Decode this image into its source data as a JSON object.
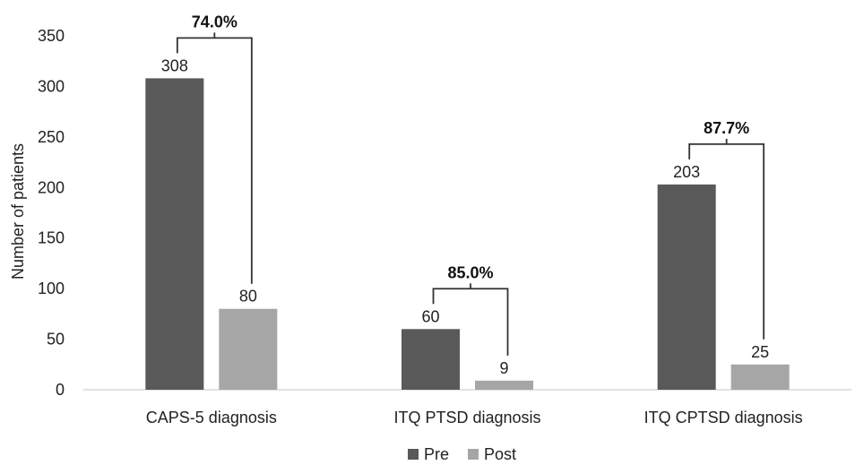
{
  "chart_data": {
    "type": "bar",
    "categories": [
      "CAPS-5 diagnosis",
      "ITQ PTSD diagnosis",
      "ITQ CPTSD diagnosis"
    ],
    "series": [
      {
        "name": "Pre",
        "values": [
          308,
          60,
          203
        ],
        "color": "#595959"
      },
      {
        "name": "Post",
        "values": [
          80,
          9,
          25
        ],
        "color": "#a6a6a6"
      }
    ],
    "annotations": [
      "74.0%",
      "85.0%",
      "87.7%"
    ],
    "ylabel": "Number of patients",
    "ylim": [
      0,
      350
    ],
    "yticks": [
      0,
      50,
      100,
      150,
      200,
      250,
      300,
      350
    ],
    "grid": false,
    "legend_position": "bottom"
  }
}
